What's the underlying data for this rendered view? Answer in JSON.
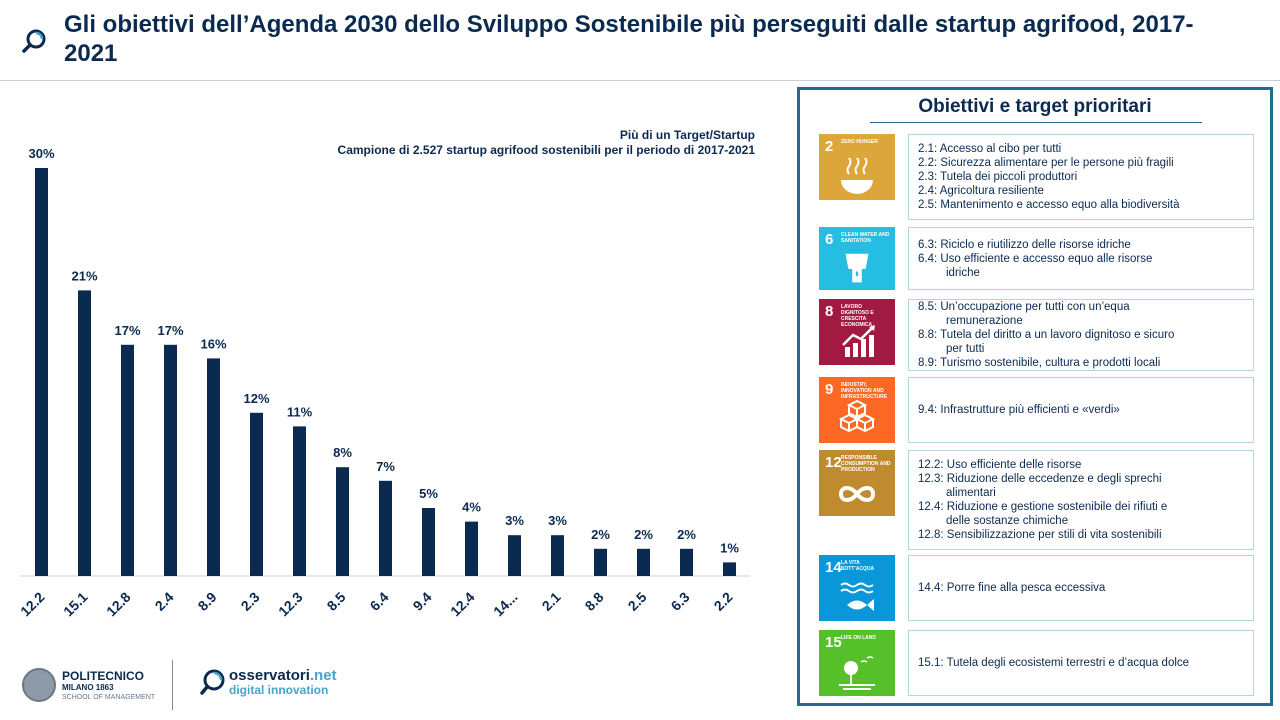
{
  "title": "Gli obiettivi dell’Agenda 2030 dello Sviluppo Sostenibile più perseguiti dalle startup agrifood, 2017-2021",
  "note_line1": "Più di un Target/Startup",
  "note_line2": "Campione  di 2.527  startup agrifood  sostenibili  per il periodo  di 2017-2021",
  "chart_data": {
    "type": "bar",
    "categories": [
      "12.2",
      "15.1",
      "12.8",
      "2.4",
      "8.9",
      "2.3",
      "12.3",
      "8.5",
      "6.4",
      "9.4",
      "12.4",
      "14...",
      "2.1",
      "8.8",
      "2.5",
      "6.3",
      "2.2"
    ],
    "values": [
      30,
      21,
      17,
      17,
      16,
      12,
      11,
      8,
      7,
      5,
      4,
      3,
      3,
      2,
      2,
      2,
      1
    ],
    "value_labels": [
      "30%",
      "21%",
      "17%",
      "17%",
      "16%",
      "12%",
      "11%",
      "8%",
      "7%",
      "5%",
      "4%",
      "3%",
      "3%",
      "2%",
      "2%",
      "2%",
      "1%"
    ],
    "value_unit": "%",
    "ylim": [
      0,
      30
    ],
    "bar_color": "#0b2a4f",
    "grid": false,
    "y_axis_visible": false
  },
  "panel": {
    "title": "Obiettivi  e target  prioritari",
    "border_color": "#1f6f8b",
    "goals": [
      {
        "number": "2",
        "label": "ZERO HUNGER",
        "color": "#dda63a",
        "icon": "food-bowl-icon",
        "targets": [
          {
            "text": "2.1: Accesso al cibo per tutti"
          },
          {
            "text": "2.2: Sicurezza alimentare per le persone più fragili"
          },
          {
            "text": "2.3: Tutela dei piccoli produttori"
          },
          {
            "text": "2.4: Agricoltura resiliente"
          },
          {
            "text": "2.5: Mantenimento e accesso equo alla biodiversità"
          }
        ]
      },
      {
        "number": "6",
        "label": "CLEAN WATER AND SANITATION",
        "color": "#26bde2",
        "icon": "water-glass-icon",
        "targets": [
          {
            "text": "6.3: Riciclo e riutilizzo delle risorse idriche"
          },
          {
            "text": "6.4: Uso efficiente e accesso equo alle risorse",
            "cont": "idriche"
          }
        ]
      },
      {
        "number": "8",
        "label": "LAVORO DIGNITOSO E CRESCITA ECONOMICA",
        "color": "#a21942",
        "icon": "growth-chart-icon",
        "targets": [
          {
            "text": "8.5: Un’occupazione per tutti con un’equa",
            "cont": "remunerazione"
          },
          {
            "text": "8.8: Tutela del diritto a un lavoro dignitoso e sicuro",
            "cont": "per tutti"
          },
          {
            "text": "8.9: Turismo sostenibile, cultura e prodotti locali"
          }
        ]
      },
      {
        "number": "9",
        "label": "INDUSTRY, INNOVATION AND INFRASTRUCTURE",
        "color": "#fd6925",
        "icon": "cubes-icon",
        "targets": [
          {
            "text": "9.4: Infrastrutture più efficienti e «verdi»"
          }
        ]
      },
      {
        "number": "12",
        "label": "RESPONSIBLE CONSUMPTION AND PRODUCTION",
        "color": "#bf8b2e",
        "icon": "infinity-icon",
        "targets": [
          {
            "text": "12.2: Uso efficiente delle risorse"
          },
          {
            "text": "12.3: Riduzione delle eccedenze e degli sprechi",
            "cont": "alimentari"
          },
          {
            "text": "12.4: Riduzione e gestione sostenibile dei rifiuti e",
            "cont": "delle sostanze chimiche"
          },
          {
            "text": "12.8: Sensibilizzazione per stili di vita sostenibili"
          }
        ]
      },
      {
        "number": "14",
        "label": "LA VITA SOTT’ACQUA",
        "color": "#0a97d9",
        "icon": "fish-icon",
        "targets": [
          {
            "text": "14.4: Porre fine alla pesca eccessiva"
          }
        ]
      },
      {
        "number": "15",
        "label": "LIFE ON LAND",
        "color": "#56c02b",
        "icon": "tree-icon",
        "targets": [
          {
            "text": "15.1: Tutela degli ecosistemi terrestri e d’acqua dolce"
          }
        ]
      }
    ]
  },
  "footer": {
    "poli_name": "POLITECNICO",
    "poli_sub": "MILANO 1863",
    "poli_sub2": "SCHOOL OF MANAGEMENT",
    "oss_name_main": "osservatori",
    "oss_name_ext": ".net",
    "oss_sub": "digital innovation"
  }
}
